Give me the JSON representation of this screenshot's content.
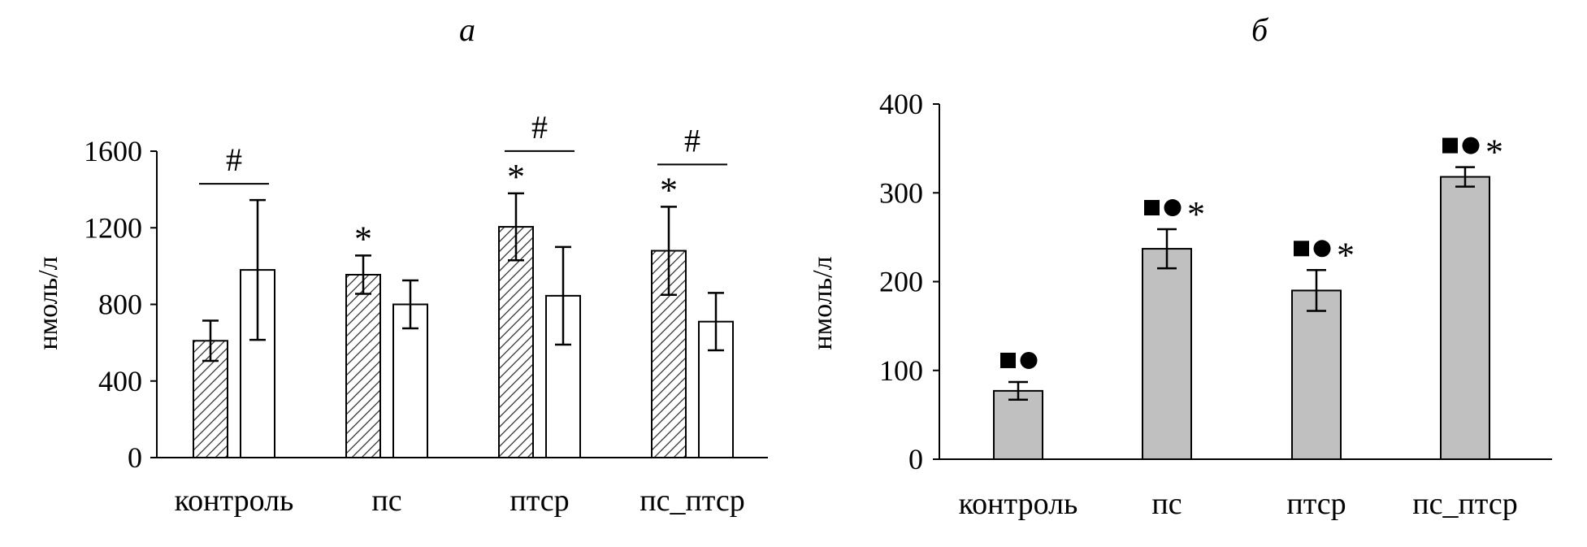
{
  "chart_data": [
    {
      "type": "bar",
      "panel_label": "а",
      "ylabel": "нмоль/л",
      "ylim": [
        0,
        1600
      ],
      "yticks": [
        0,
        400,
        800,
        1200,
        1600
      ],
      "categories": [
        "контроль",
        "пс",
        "птср",
        "пс_птср"
      ],
      "series": [
        {
          "fill": "hatched",
          "values": [
            610,
            955,
            1205,
            1080
          ],
          "errors": [
            105,
            100,
            175,
            230
          ]
        },
        {
          "fill": "white",
          "values": [
            980,
            800,
            845,
            710
          ],
          "errors": [
            365,
            125,
            255,
            150
          ]
        }
      ],
      "significance": [
        {
          "category": "контроль",
          "pair": "#",
          "star": ""
        },
        {
          "category": "пс",
          "pair": "",
          "star": "*"
        },
        {
          "category": "птср",
          "pair": "#",
          "star": "*"
        },
        {
          "category": "пс_птср",
          "pair": "#",
          "star": "*"
        }
      ],
      "grid": false
    },
    {
      "type": "bar",
      "panel_label": "б",
      "ylabel": "нмоль/л",
      "ylim": [
        0,
        400
      ],
      "yticks": [
        0,
        100,
        200,
        300,
        400
      ],
      "categories": [
        "контроль",
        "пс",
        "птср",
        "пс_птср"
      ],
      "series": [
        {
          "fill": "#c0c0c0",
          "values": [
            77,
            237,
            190,
            318
          ],
          "errors": [
            10,
            22,
            23,
            11
          ]
        }
      ],
      "markers": [
        {
          "category": "контроль",
          "symbols": "■●",
          "star": ""
        },
        {
          "category": "пс",
          "symbols": "■●",
          "star": "*"
        },
        {
          "category": "птср",
          "symbols": "■●",
          "star": "*"
        },
        {
          "category": "пс_птср",
          "symbols": "■●",
          "star": "*"
        }
      ],
      "grid": false
    }
  ]
}
